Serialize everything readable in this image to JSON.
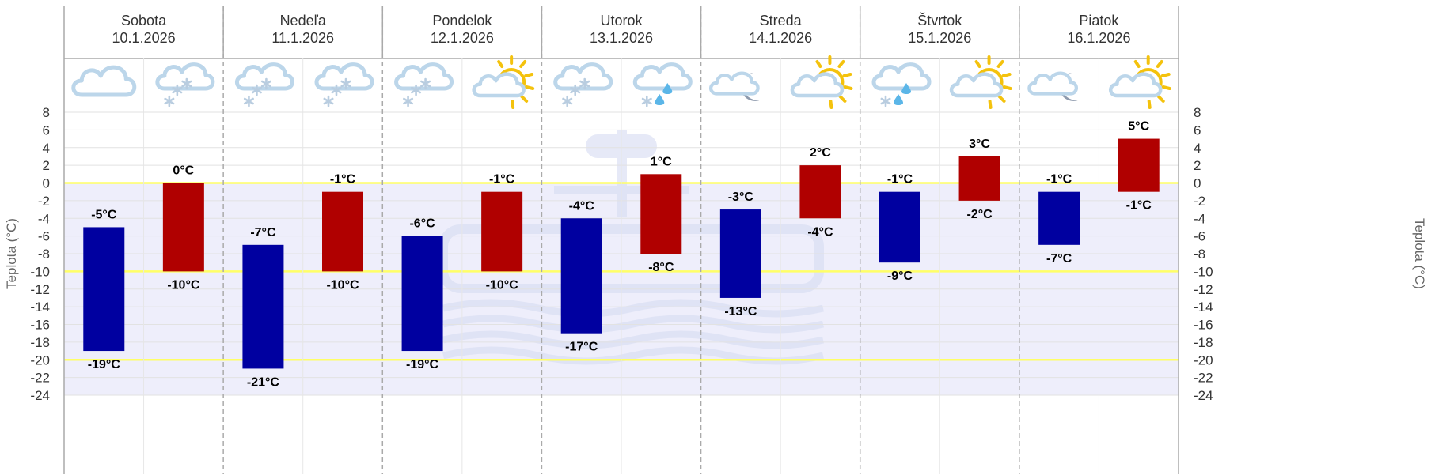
{
  "chart_data": {
    "type": "bar",
    "ylabel": "Teplota (°C)",
    "ylim": [
      -24,
      8
    ],
    "y_ticks": [
      8,
      6,
      4,
      2,
      0,
      -2,
      -4,
      -6,
      -8,
      -10,
      -12,
      -14,
      -16,
      -18,
      -20,
      -22,
      -24
    ],
    "grid": true,
    "highlight_lines": [
      0,
      -10,
      -20
    ],
    "colors": {
      "night": "#0000a0",
      "day": "#b00000",
      "below_zero_band": "#eeeefb",
      "highlight_line": "#ffff66",
      "gridline": "#e2e2e2"
    },
    "days": [
      {
        "name": "Sobota",
        "date": "10.1.2026",
        "night_icon": "cloud-icon",
        "day_icon": "cloud-snow-icon",
        "night": {
          "top": -5,
          "bottom": -19,
          "top_label": "-5°C",
          "bottom_label": "-19°C"
        },
        "day": {
          "top": 0,
          "bottom": -10,
          "top_label": "0°C",
          "bottom_label": "-10°C"
        }
      },
      {
        "name": "Nedeľa",
        "date": "11.1.2026",
        "night_icon": "cloud-snow-icon",
        "day_icon": "cloud-snow-icon",
        "night": {
          "top": -7,
          "bottom": -21,
          "top_label": "-7°C",
          "bottom_label": "-21°C"
        },
        "day": {
          "top": -1,
          "bottom": -10,
          "top_label": "-1°C",
          "bottom_label": "-10°C"
        }
      },
      {
        "name": "Pondelok",
        "date": "12.1.2026",
        "night_icon": "cloud-snow-icon",
        "day_icon": "sun-cloud-icon",
        "night": {
          "top": -6,
          "bottom": -19,
          "top_label": "-6°C",
          "bottom_label": "-19°C"
        },
        "day": {
          "top": -1,
          "bottom": -10,
          "top_label": "-1°C",
          "bottom_label": "-10°C"
        }
      },
      {
        "name": "Utorok",
        "date": "13.1.2026",
        "night_icon": "cloud-snow-icon",
        "day_icon": "cloud-sleet-icon",
        "night": {
          "top": -4,
          "bottom": -17,
          "top_label": "-4°C",
          "bottom_label": "-17°C"
        },
        "day": {
          "top": 1,
          "bottom": -8,
          "top_label": "1°C",
          "bottom_label": "-8°C"
        }
      },
      {
        "name": "Streda",
        "date": "14.1.2026",
        "night_icon": "moon-cloud-icon",
        "day_icon": "sun-cloud-icon",
        "night": {
          "top": -3,
          "bottom": -13,
          "top_label": "-3°C",
          "bottom_label": "-13°C"
        },
        "day": {
          "top": 2,
          "bottom": -4,
          "top_label": "2°C",
          "bottom_label": "-4°C"
        }
      },
      {
        "name": "Štvrtok",
        "date": "15.1.2026",
        "night_icon": "cloud-sleet-icon",
        "day_icon": "sun-cloud-icon",
        "night": {
          "top": -1,
          "bottom": -9,
          "top_label": "-1°C",
          "bottom_label": "-9°C"
        },
        "day": {
          "top": 3,
          "bottom": -2,
          "top_label": "3°C",
          "bottom_label": "-2°C"
        }
      },
      {
        "name": "Piatok",
        "date": "16.1.2026",
        "night_icon": "moon-cloud-icon",
        "day_icon": "sun-cloud-icon",
        "night": {
          "top": -1,
          "bottom": -7,
          "top_label": "-1°C",
          "bottom_label": "-7°C"
        },
        "day": {
          "top": 5,
          "bottom": -1,
          "top_label": "5°C",
          "bottom_label": "-1°C"
        }
      }
    ]
  }
}
